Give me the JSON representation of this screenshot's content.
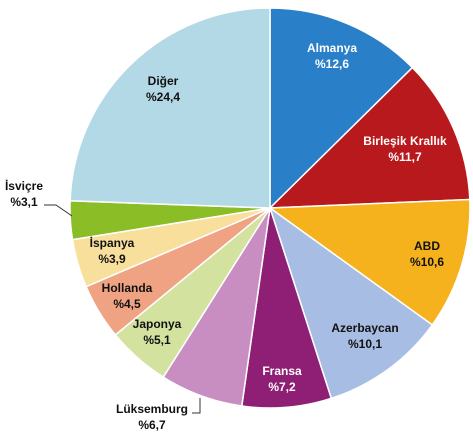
{
  "chart_data": {
    "type": "pie",
    "categories": [
      "Almanya",
      "Birleşik Krallık",
      "ABD",
      "Azerbaycan",
      "Fransa",
      "Lüksemburg",
      "Japonya",
      "Hollanda",
      "İspanya",
      "İsviçre",
      "Diğer"
    ],
    "values": [
      12.6,
      11.7,
      10.6,
      10.1,
      7.2,
      6.7,
      5.1,
      4.5,
      3.9,
      3.1,
      24.4
    ],
    "value_labels": [
      "%12,6",
      "%11,7",
      "%10,6",
      "%10,1",
      "%7,2",
      "%6,7",
      "%5,1",
      "%4,5",
      "%3,9",
      "%3,1",
      "%24,4"
    ],
    "colors": [
      "#2a7fc9",
      "#b8191c",
      "#f5b21c",
      "#a7bde3",
      "#8e1f74",
      "#c88ec2",
      "#d4e2a0",
      "#efa383",
      "#f9df9c",
      "#8bbd26",
      "#b3d9e6"
    ]
  }
}
